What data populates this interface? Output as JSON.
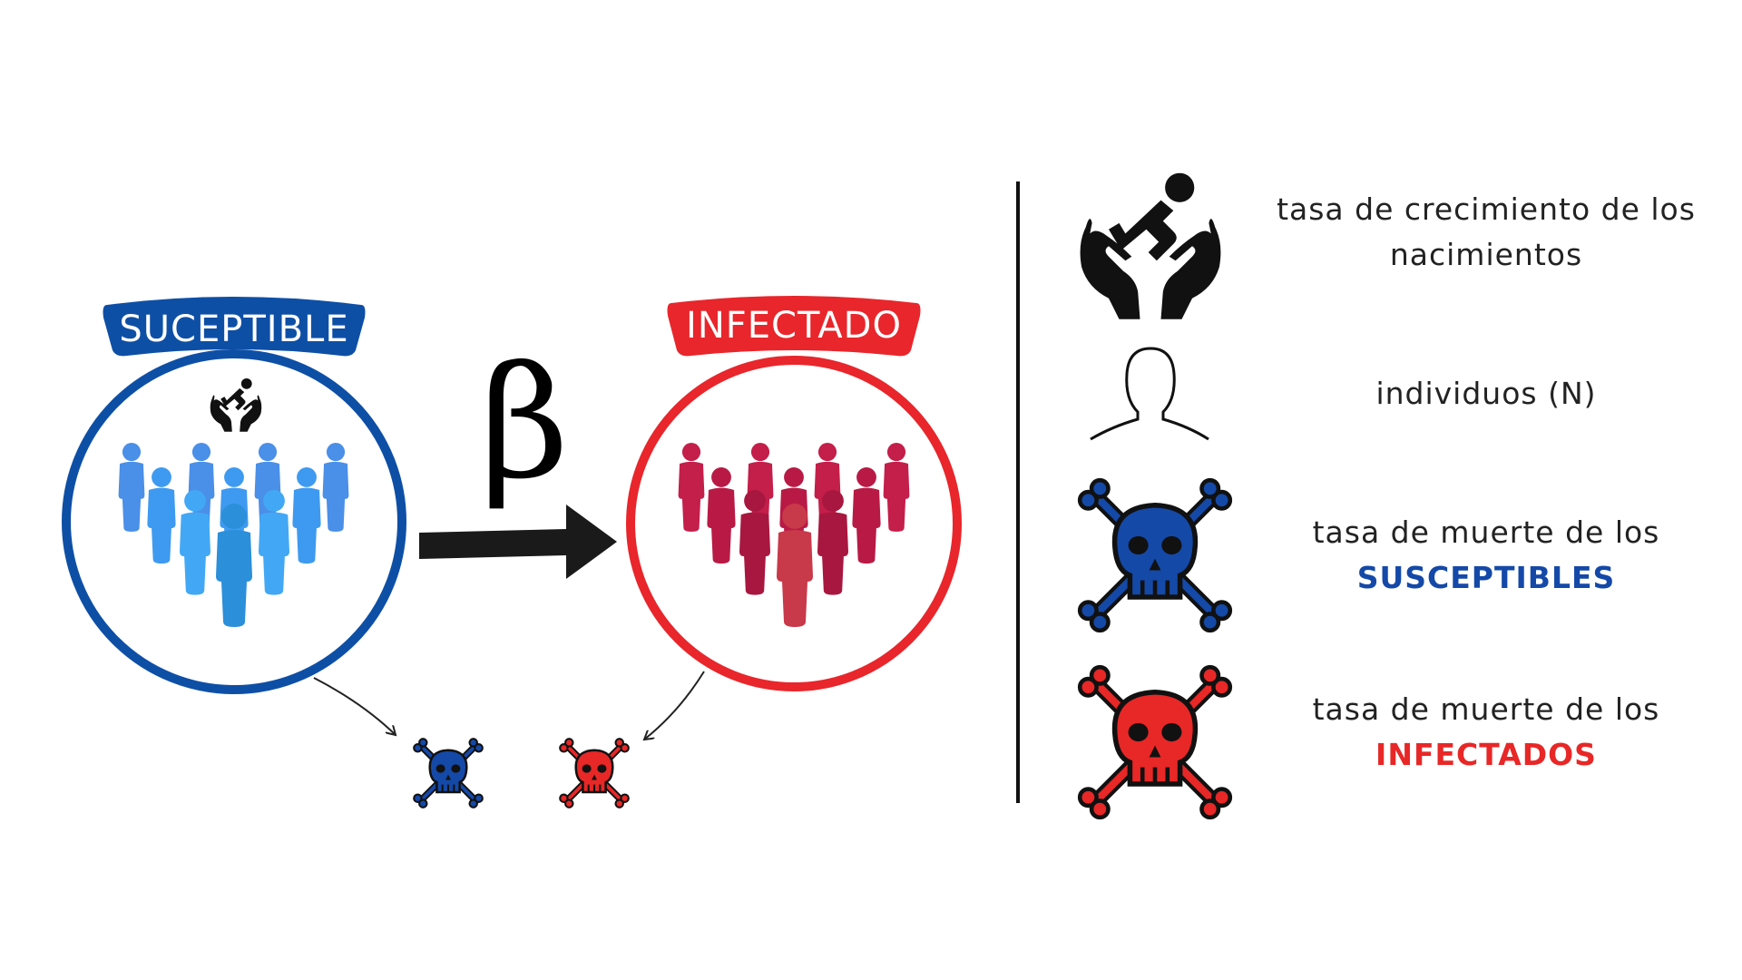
{
  "diagram": {
    "susceptible_label": "SUCEPTIBLE",
    "infected_label": "INFECTADO",
    "transition_symbol": "β"
  },
  "legend": {
    "births_line1": "tasa de crecimiento de los",
    "births_line2": "nacimientos",
    "individuals": "individuos (N)",
    "death_s_line1": "tasa de muerte de los",
    "death_s_line2": "SUSCEPTIBLES",
    "death_i_line1": "tasa de muerte de los",
    "death_i_line2": "INFECTADOS"
  },
  "icons": {
    "births": "baby-hands-icon",
    "individual": "person-outline-icon",
    "death": "skull-crossbones-icon",
    "crowd": "people-group-icon"
  },
  "colors": {
    "susceptible": "#0E4FA6",
    "infected": "#E8262B",
    "death_s": "#1449A8",
    "death_i": "#E82727",
    "arrow": "#1A1A1A"
  }
}
